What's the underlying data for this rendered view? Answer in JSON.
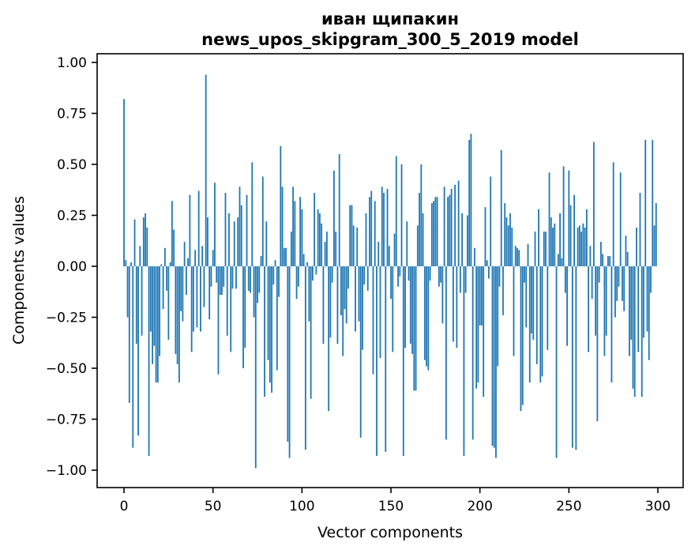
{
  "chart_data": {
    "type": "bar",
    "title_line1": "иван щипакин",
    "title_line2": "news_upos_skipgram_300_5_2019 model",
    "xlabel": "Vector components",
    "ylabel": "Components values",
    "legend": null,
    "grid": false,
    "bar_color": "#1f77b4",
    "axis_color": "#000000",
    "background_color": "#ffffff",
    "n_bars": 300,
    "x_start": 0,
    "xticks": [
      0,
      50,
      100,
      150,
      200,
      250,
      300
    ],
    "yticks": [
      -1.0,
      -0.75,
      -0.5,
      -0.25,
      0.0,
      0.25,
      0.5,
      0.75,
      1.0
    ],
    "ytick_labels": [
      "−1.00",
      "−0.75",
      "−0.50",
      "−0.25",
      "0.00",
      "0.25",
      "0.50",
      "0.75",
      "1.00"
    ],
    "xlim": [
      -15.1,
      314.2
    ],
    "ylim": [
      -1.0853,
      1.0426
    ],
    "ymin_value": -0.99,
    "ymax_value": 0.94,
    "values": [
      0.82,
      0.03,
      -0.25,
      -0.67,
      0.02,
      -0.89,
      0.23,
      -0.38,
      -0.83,
      0.1,
      -0.34,
      0.24,
      0.26,
      0.19,
      -0.93,
      -0.32,
      -0.48,
      -0.39,
      -0.57,
      -0.57,
      -0.44,
      0.01,
      -0.21,
      0.09,
      -0.12,
      -0.36,
      0.02,
      0.32,
      0.18,
      -0.43,
      -0.48,
      -0.57,
      -0.22,
      -0.27,
      0.12,
      -0.14,
      0.04,
      0.35,
      -0.42,
      -0.32,
      0.08,
      -0.3,
      0.37,
      -0.32,
      0.1,
      -0.2,
      0.94,
      0.24,
      -0.26,
      -0.1,
      0.08,
      0.41,
      -0.08,
      -0.53,
      -0.14,
      -0.14,
      -0.1,
      0.36,
      -0.34,
      0.26,
      -0.42,
      -0.11,
      0.22,
      -0.11,
      0.24,
      0.39,
      0.3,
      -0.5,
      -0.4,
      0.35,
      -0.12,
      -0.13,
      0.51,
      -0.25,
      -0.99,
      -0.18,
      -0.13,
      0.05,
      0.44,
      -0.64,
      0.22,
      -0.46,
      -0.57,
      -0.62,
      -0.09,
      0.03,
      -0.51,
      -0.15,
      0.59,
      0.39,
      0.09,
      0.09,
      -0.86,
      -0.94,
      0.17,
      0.39,
      0.32,
      -0.16,
      -0.1,
      0.34,
      0.28,
      0.06,
      -0.9,
      0.02,
      -0.27,
      -0.65,
      -0.07,
      0.36,
      -0.04,
      0.28,
      0.26,
      0.21,
      -0.38,
      0.12,
      0.17,
      -0.71,
      -0.35,
      -0.08,
      0.47,
      0.17,
      -0.38,
      0.55,
      -0.24,
      -0.44,
      -0.21,
      -0.28,
      -0.11,
      0.3,
      0.3,
      0.2,
      -0.32,
      0.19,
      -0.27,
      -0.84,
      -0.41,
      -0.09,
      0.26,
      -0.12,
      0.34,
      0.37,
      -0.53,
      0.32,
      -0.93,
      0.12,
      -0.45,
      0.39,
      0.36,
      -0.91,
      0.38,
      0.1,
      -0.16,
      -0.42,
      0.16,
      0.54,
      -0.1,
      -0.05,
      0.5,
      -0.93,
      -0.4,
      0.22,
      -0.07,
      -0.38,
      -0.43,
      -0.61,
      -0.61,
      0.2,
      0.36,
      0.5,
      0.26,
      -0.46,
      -0.49,
      -0.51,
      -0.07,
      0.31,
      0.32,
      0.34,
      0.34,
      -0.1,
      -0.08,
      -0.28,
      0.39,
      -0.85,
      0.34,
      0.35,
      0.38,
      -0.37,
      0.4,
      -0.4,
      0.42,
      -0.13,
      0.26,
      -0.93,
      -0.13,
      0.25,
      0.62,
      0.65,
      -0.85,
      0.09,
      -0.6,
      -0.57,
      -0.29,
      -0.29,
      -0.64,
      0.29,
      0.03,
      -0.06,
      0.44,
      -0.88,
      -0.89,
      -0.94,
      -0.49,
      -0.1,
      0.57,
      -0.24,
      0.31,
      0.24,
      0.2,
      0.26,
      0.19,
      -0.44,
      0.1,
      0.09,
      0.08,
      -0.71,
      -0.68,
      -0.08,
      -0.3,
      0.11,
      -0.57,
      -0.33,
      -0.36,
      0.17,
      -0.48,
      0.28,
      -0.57,
      -0.54,
      0.17,
      0.17,
      -0.41,
      0.46,
      0.24,
      0.19,
      0.21,
      -0.94,
      0.06,
      0.26,
      0.04,
      0.49,
      -0.13,
      -0.39,
      0.47,
      0.3,
      -0.89,
      0.35,
      -0.9,
      0.19,
      0.2,
      0.17,
      0.21,
      0.19,
      0.28,
      -0.42,
      0.1,
      -0.16,
      0.61,
      -0.34,
      -0.76,
      -0.08,
      0.12,
      0.06,
      -0.44,
      -0.34,
      0.05,
      0.05,
      -0.57,
      0.51,
      -0.25,
      -0.17,
      -0.1,
      0.46,
      -0.17,
      -0.22,
      0.15,
      0.07,
      -0.44,
      -0.36,
      -0.6,
      -0.64,
      0.19,
      -0.42,
      0.36,
      -0.64,
      -0.35,
      0.62,
      -0.32,
      -0.46,
      -0.13,
      0.62,
      0.2,
      0.31
    ]
  }
}
